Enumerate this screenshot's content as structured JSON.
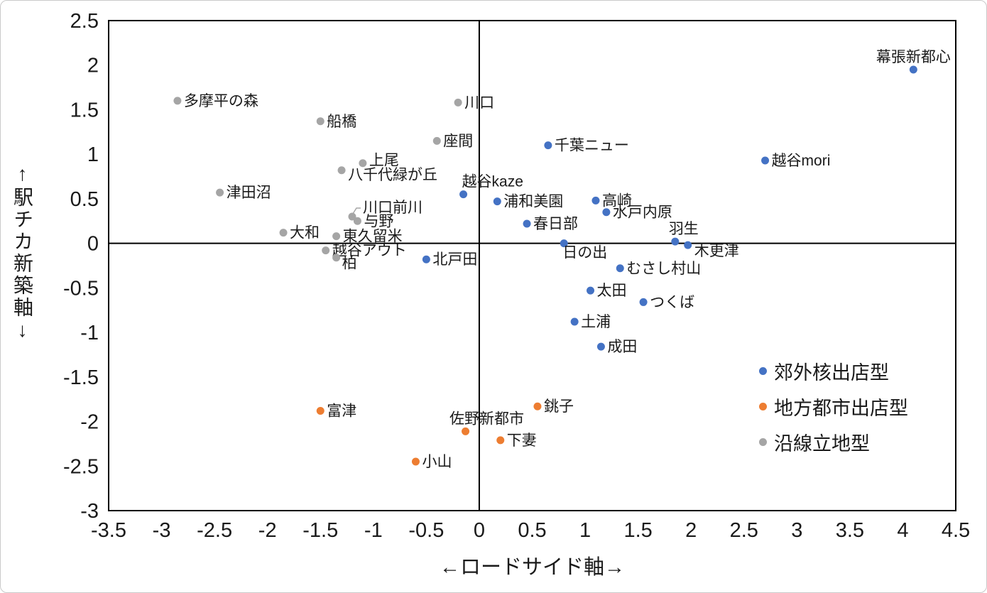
{
  "chart_data": {
    "type": "scatter",
    "title": "",
    "xlabel": "←ロードサイド軸→",
    "ylabel": "↑駅チカ新築軸↓",
    "xlim": [
      -3.5,
      4.5
    ],
    "ylim": [
      -3,
      2.5
    ],
    "xticks": [
      -3.5,
      -3,
      -2.5,
      -2,
      -1.5,
      -1,
      -0.5,
      0,
      0.5,
      1,
      1.5,
      2,
      2.5,
      3,
      3.5,
      4,
      4.5
    ],
    "yticks": [
      2.5,
      2,
      1.5,
      1,
      0.5,
      0,
      -0.5,
      -1,
      -1.5,
      -2,
      -2.5,
      -3
    ],
    "grid": false,
    "legend_position": "inside-right",
    "axis_color": "#000000",
    "series": [
      {
        "name": "郊外核出店型",
        "color": "#4472C4",
        "points": [
          {
            "label": "幕張新都心",
            "x": 4.1,
            "y": 1.95,
            "pos": "above"
          },
          {
            "label": "千葉ニュー",
            "x": 0.65,
            "y": 1.1
          },
          {
            "label": "越谷mori",
            "x": 2.7,
            "y": 0.93
          },
          {
            "label": "越谷kaze",
            "x": -0.15,
            "y": 0.55,
            "pos": "above-start",
            "dx": -2
          },
          {
            "label": "浦和美園",
            "x": 0.17,
            "y": 0.47
          },
          {
            "label": "高崎",
            "x": 1.1,
            "y": 0.48
          },
          {
            "label": "水戸内原",
            "x": 1.2,
            "y": 0.35
          },
          {
            "label": "春日部",
            "x": 0.45,
            "y": 0.22
          },
          {
            "label": "羽生",
            "x": 1.85,
            "y": 0.02,
            "pos": "above",
            "dx": 12
          },
          {
            "label": "木更津",
            "x": 1.97,
            "y": -0.02,
            "dy": 8
          },
          {
            "label": "日の出",
            "x": 0.8,
            "y": 0.0,
            "pos": "below-start",
            "dx": -2,
            "dy": -2
          },
          {
            "label": "北戸田",
            "x": -0.5,
            "y": -0.18
          },
          {
            "label": "むさし村山",
            "x": 1.33,
            "y": -0.28
          },
          {
            "label": "太田",
            "x": 1.05,
            "y": -0.53
          },
          {
            "label": "つくば",
            "x": 1.55,
            "y": -0.66
          },
          {
            "label": "土浦",
            "x": 0.9,
            "y": -0.88
          },
          {
            "label": "成田",
            "x": 1.15,
            "y": -1.16
          }
        ]
      },
      {
        "name": "地方都市出店型",
        "color": "#ED7D31",
        "points": [
          {
            "label": "富津",
            "x": -1.5,
            "y": -1.88
          },
          {
            "label": "銚子",
            "x": 0.55,
            "y": -1.83
          },
          {
            "label": "佐野新都市",
            "x": -0.13,
            "y": -2.11,
            "pos": "above",
            "dx": 30
          },
          {
            "label": "下妻",
            "x": 0.2,
            "y": -2.21
          },
          {
            "label": "小山",
            "x": -0.6,
            "y": -2.45
          }
        ]
      },
      {
        "name": "沿線立地型",
        "color": "#A5A5A5",
        "points": [
          {
            "label": "多摩平の森",
            "x": -2.85,
            "y": 1.6
          },
          {
            "label": "川口",
            "x": -0.2,
            "y": 1.58
          },
          {
            "label": "船橋",
            "x": -1.5,
            "y": 1.37
          },
          {
            "label": "座間",
            "x": -0.4,
            "y": 1.15
          },
          {
            "label": "上尾",
            "x": -1.1,
            "y": 0.9,
            "dy": -4
          },
          {
            "label": "八千代緑が丘",
            "x": -1.3,
            "y": 0.82,
            "dy": 6
          },
          {
            "label": "津田沼",
            "x": -2.45,
            "y": 0.57
          },
          {
            "label": "川口前川",
            "x": -1.2,
            "y": 0.3,
            "dx": 6,
            "dy": -13,
            "leader": true
          },
          {
            "label": "与野",
            "x": -1.15,
            "y": 0.25
          },
          {
            "label": "大和",
            "x": -1.85,
            "y": 0.12
          },
          {
            "label": "東久留米",
            "x": -1.35,
            "y": 0.08
          },
          {
            "label": "越谷アウト",
            "x": -1.45,
            "y": -0.08
          },
          {
            "label": "柏",
            "x": -1.35,
            "y": -0.16,
            "pos": "below-start",
            "dx": 8,
            "dy": -7
          }
        ]
      }
    ]
  }
}
